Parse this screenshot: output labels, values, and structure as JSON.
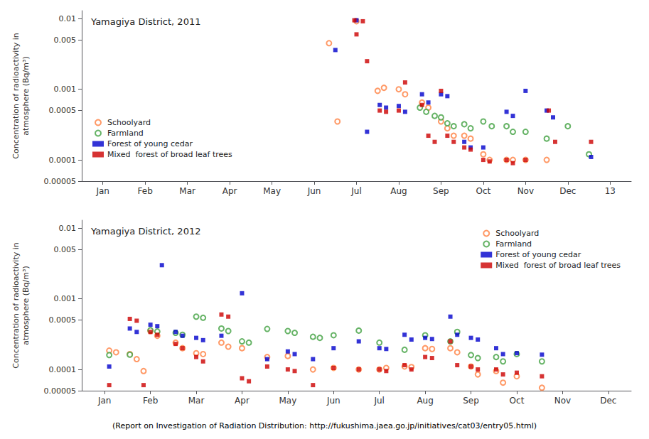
{
  "footnote": "(Report on Investigation of Radiation Distribution: http://fukushima.jaea.go.jp/initiatives/cat03/entry05.html)",
  "chart_data": [
    {
      "type": "scatter",
      "title": "Yamagiya District, 2011",
      "ylabel": "Concentration of radioactivity in\natmosphere (Bq/m³)",
      "log": "y",
      "grid": false,
      "legend": "lower left",
      "xlim": [
        0.5,
        13.5
      ],
      "xticks": [
        {
          "value": 1,
          "label": "Jan"
        },
        {
          "value": 2,
          "label": "Feb"
        },
        {
          "value": 3,
          "label": "Mar"
        },
        {
          "value": 4,
          "label": "Apr"
        },
        {
          "value": 5,
          "label": "May"
        },
        {
          "value": 6,
          "label": "Jun"
        },
        {
          "value": 7,
          "label": "Jul"
        },
        {
          "value": 8,
          "label": "Aug"
        },
        {
          "value": 9,
          "label": "Sep"
        },
        {
          "value": 10,
          "label": "Oct"
        },
        {
          "value": 11,
          "label": "Nov"
        },
        {
          "value": 12,
          "label": "Dec"
        },
        13
      ],
      "ylim": [
        5e-05,
        0.013
      ],
      "yticks": [
        5e-05,
        0.0001,
        0.0005,
        0.001,
        0.005,
        0.01
      ],
      "series": [
        {
          "name": "Schoolyard",
          "color": "#FF8040",
          "marker": "open_circle",
          "x": [
            6.35,
            6.55,
            7.0,
            7.5,
            7.65,
            8.0,
            8.15,
            8.55,
            8.7,
            9.0,
            9.15,
            9.3,
            9.55,
            9.7,
            10.0,
            10.15,
            10.55,
            10.7,
            11.0,
            11.5
          ],
          "values": [
            0.0045,
            0.00035,
            0.0092,
            0.00095,
            0.00105,
            0.001,
            0.00085,
            0.00065,
            0.00055,
            0.00035,
            0.00028,
            0.00022,
            0.00022,
            0.0002,
            0.00012,
            0.0001,
            0.0001,
            0.0001,
            0.0001,
            0.0001
          ]
        },
        {
          "name": "Farmland",
          "color": "#40A040",
          "marker": "open_circle",
          "x": [
            8.5,
            8.65,
            8.85,
            9.0,
            9.15,
            9.3,
            9.55,
            9.7,
            10.0,
            10.2,
            10.55,
            10.7,
            11.0,
            11.5,
            12.0,
            12.5
          ],
          "values": [
            0.00055,
            0.00048,
            0.00042,
            0.0004,
            0.00033,
            0.0003,
            0.00032,
            0.00028,
            0.00035,
            0.0003,
            0.0003,
            0.00025,
            0.00025,
            0.0002,
            0.0003,
            0.00012
          ]
        },
        {
          "name": "Forest of young cedar",
          "color": "#0000CC",
          "marker": "square",
          "x": [
            6.5,
            7.0,
            7.25,
            7.55,
            7.7,
            8.0,
            8.15,
            8.55,
            8.7,
            9.0,
            9.15,
            9.55,
            9.7,
            10.0,
            10.55,
            10.7,
            11.0,
            11.5,
            11.65,
            12.55
          ],
          "values": [
            0.0036,
            0.0095,
            0.00025,
            0.0006,
            0.00055,
            0.00058,
            0.00048,
            0.00085,
            0.00065,
            0.00085,
            0.0008,
            0.00018,
            0.00015,
            0.00015,
            0.00048,
            0.00042,
            0.00095,
            0.0005,
            0.0004,
            0.00011
          ]
        },
        {
          "name": "Mixed  forest of broad leaf trees",
          "color": "#CC0000",
          "marker": "square",
          "x": [
            6.95,
            7.0,
            7.15,
            7.25,
            7.55,
            7.7,
            8.0,
            8.15,
            8.55,
            8.7,
            8.85,
            9.0,
            9.15,
            9.3,
            9.55,
            9.7,
            10.0,
            10.15,
            10.55,
            10.7,
            11.0,
            11.55,
            11.7,
            12.55
          ],
          "values": [
            0.0095,
            0.006,
            0.0092,
            0.0025,
            0.0005,
            0.00048,
            0.0005,
            0.00125,
            0.0006,
            0.00022,
            0.00018,
            0.00095,
            0.00022,
            0.00018,
            0.00015,
            0.00014,
            0.0001,
            9.5e-05,
            0.0001,
            9e-05,
            0.0001,
            0.0005,
            0.00018,
            0.00018
          ]
        }
      ]
    },
    {
      "type": "scatter",
      "title": "Yamagiya District, 2012",
      "ylabel": "Concentration of radioactivity in\natmosphere (Bq/m³)",
      "log": "y",
      "grid": false,
      "legend": "upper right",
      "xlim": [
        0.5,
        12.5
      ],
      "xticks": [
        {
          "value": 1,
          "label": "Jan"
        },
        {
          "value": 2,
          "label": "Feb"
        },
        {
          "value": 3,
          "label": "Mar"
        },
        {
          "value": 4,
          "label": "Apr"
        },
        {
          "value": 5,
          "label": "May"
        },
        {
          "value": 6,
          "label": "Jun"
        },
        {
          "value": 7,
          "label": "Jul"
        },
        {
          "value": 8,
          "label": "Aug"
        },
        {
          "value": 9,
          "label": "Sep"
        },
        {
          "value": 10,
          "label": "Oct"
        },
        {
          "value": 11,
          "label": "Nov"
        },
        {
          "value": 12,
          "label": "Dec"
        }
      ],
      "ylim": [
        5e-05,
        0.013
      ],
      "yticks": [
        5e-05,
        0.0001,
        0.0005,
        0.001,
        0.005,
        0.01
      ],
      "series": [
        {
          "name": "Schoolyard",
          "color": "#FF8040",
          "marker": "open_circle",
          "x": [
            1.1,
            1.25,
            1.55,
            1.7,
            1.85,
            2.0,
            2.15,
            2.55,
            2.7,
            3.0,
            3.15,
            3.55,
            3.7,
            4.0,
            4.55,
            5.0,
            5.55,
            6.0,
            6.55,
            7.0,
            7.15,
            7.55,
            7.7,
            8.0,
            8.15,
            8.55,
            8.7,
            9.0,
            9.15,
            9.55,
            9.7,
            10.0,
            10.55
          ],
          "values": [
            0.000185,
            0.000175,
            0.000165,
            0.00014,
            9.5e-05,
            0.00035,
            0.0003,
            0.00024,
            0.0002,
            0.00017,
            0.000165,
            0.00024,
            0.00021,
            0.0002,
            0.00015,
            0.000155,
            0.0001,
            0.000105,
            0.0001,
            0.0001,
            0.000105,
            0.00011,
            0.000108,
            0.0002,
            0.000195,
            0.0002,
            0.000175,
            0.00011,
            8.5e-05,
            9.5e-05,
            6.5e-05,
            8e-05,
            5.5e-05
          ]
        },
        {
          "name": "Farmland",
          "color": "#40A040",
          "marker": "open_circle",
          "x": [
            1.1,
            1.55,
            2.0,
            2.15,
            2.55,
            2.7,
            3.0,
            3.15,
            3.55,
            3.7,
            4.0,
            4.15,
            4.55,
            5.0,
            5.15,
            5.55,
            5.7,
            6.0,
            6.55,
            7.0,
            7.55,
            8.0,
            8.55,
            8.7,
            9.0,
            9.15,
            9.55,
            9.7,
            10.0,
            10.55
          ],
          "values": [
            0.00016,
            0.000162,
            0.00036,
            0.000345,
            0.00033,
            0.00031,
            0.00056,
            0.00054,
            0.00038,
            0.00035,
            0.00025,
            0.00024,
            0.000375,
            0.00035,
            0.00033,
            0.00029,
            0.00028,
            0.000305,
            0.000355,
            0.00024,
            0.00019,
            0.000305,
            0.00025,
            0.00034,
            0.00016,
            0.000145,
            0.00015,
            0.00013,
            0.000165,
            0.00013
          ]
        },
        {
          "name": "Forest of young cedar",
          "color": "#0000CC",
          "marker": "square",
          "x": [
            1.1,
            1.55,
            1.7,
            2.0,
            2.15,
            2.25,
            2.55,
            2.7,
            3.0,
            3.15,
            3.55,
            4.0,
            4.55,
            5.0,
            5.15,
            5.55,
            6.0,
            6.55,
            7.0,
            7.15,
            7.55,
            7.7,
            8.0,
            8.15,
            8.55,
            8.7,
            9.0,
            9.15,
            9.55,
            9.7,
            10.0,
            10.55
          ],
          "values": [
            0.00011,
            0.00038,
            0.00034,
            0.00043,
            0.00041,
            0.003,
            0.00034,
            0.0003,
            0.00028,
            0.00026,
            0.0003,
            0.0012,
            0.00014,
            0.00018,
            0.000165,
            0.00014,
            0.0002,
            0.00025,
            0.0002,
            0.000195,
            0.00031,
            0.000265,
            0.00028,
            0.00027,
            0.00056,
            0.00031,
            0.00028,
            0.000265,
            0.0002,
            0.000165,
            0.00017,
            0.000162
          ]
        },
        {
          "name": "Mixed  forest of broad leaf trees",
          "color": "#CC0000",
          "marker": "square",
          "x": [
            1.1,
            1.55,
            1.7,
            1.85,
            2.0,
            2.15,
            2.55,
            2.7,
            3.0,
            3.15,
            3.55,
            3.7,
            4.0,
            4.15,
            4.55,
            5.0,
            5.15,
            5.55,
            6.0,
            6.55,
            7.0,
            7.15,
            7.55,
            7.7,
            8.0,
            8.15,
            8.55,
            8.7,
            9.0,
            9.15,
            9.55,
            9.7,
            10.0,
            10.55
          ],
          "values": [
            6e-05,
            0.00052,
            0.00049,
            6e-05,
            0.00034,
            0.00031,
            0.00023,
            0.0002,
            0.00015,
            0.00013,
            0.0006,
            0.00056,
            7.5e-05,
            6.8e-05,
            0.00011,
            0.0001,
            9.5e-05,
            6e-05,
            0.000105,
            0.0001,
            0.0001,
            9.5e-05,
            0.000115,
            0.0001,
            0.00015,
            0.000145,
            0.00025,
            0.000115,
            0.00011,
            0.0001,
            0.0001,
            8.5e-05,
            9e-05,
            8e-05
          ]
        }
      ]
    }
  ]
}
